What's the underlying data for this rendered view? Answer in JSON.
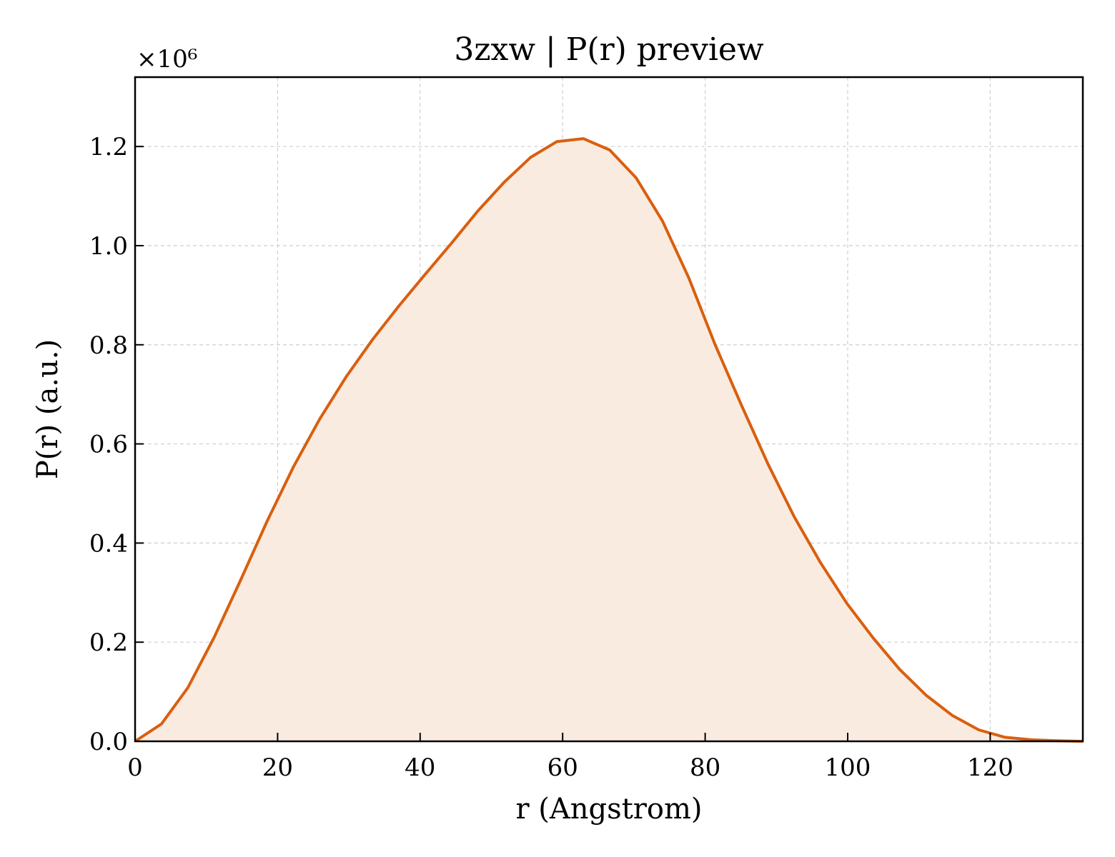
{
  "chart_data": {
    "type": "area",
    "title": "3zxw | P(r) preview",
    "xlabel": "r (Angstrom)",
    "ylabel": "P(r) (a.u.)",
    "y_multiplier_label": "×10⁶",
    "xlim": [
      0,
      133
    ],
    "ylim": [
      0,
      1.34
    ],
    "x_ticks": [
      0,
      20,
      40,
      60,
      80,
      100,
      120
    ],
    "x_tick_labels": [
      "0",
      "20",
      "40",
      "60",
      "80",
      "100",
      "120"
    ],
    "y_ticks": [
      0.0,
      0.2,
      0.4,
      0.6,
      0.8,
      1.0,
      1.2
    ],
    "y_tick_labels": [
      "0.0",
      "0.2",
      "0.4",
      "0.6",
      "0.8",
      "1.0",
      "1.2"
    ],
    "grid": true,
    "line_color": "#d95f0e",
    "fill_color": "#f9ebe0",
    "series": [
      {
        "x": [
          0,
          3.7,
          7.4,
          11.1,
          14.8,
          18.5,
          22.2,
          25.9,
          29.6,
          33.3,
          37.0,
          40.7,
          44.4,
          48.1,
          51.8,
          55.5,
          59.2,
          62.9,
          66.6,
          70.3,
          74.0,
          77.7,
          81.4,
          85.1,
          88.8,
          92.5,
          96.2,
          99.9,
          103.6,
          107.3,
          111.0,
          114.7,
          118.4,
          122.1,
          125.8,
          129.5,
          133.0
        ],
        "y": [
          0.0,
          0.035,
          0.108,
          0.21,
          0.325,
          0.443,
          0.553,
          0.65,
          0.735,
          0.81,
          0.878,
          0.942,
          1.005,
          1.07,
          1.128,
          1.178,
          1.21,
          1.216,
          1.193,
          1.137,
          1.05,
          0.935,
          0.8,
          0.678,
          0.56,
          0.453,
          0.36,
          0.278,
          0.208,
          0.145,
          0.093,
          0.052,
          0.023,
          0.008,
          0.003,
          0.001,
          0.0
        ]
      }
    ]
  }
}
